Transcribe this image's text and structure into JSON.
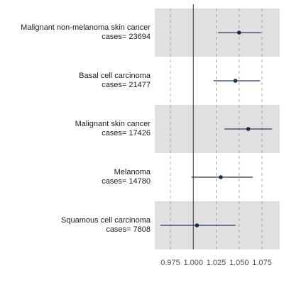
{
  "chart_data": {
    "type": "forest",
    "xlim": [
      0.96,
      1.09
    ],
    "xticks": [
      0.975,
      1.0,
      1.025,
      1.05,
      1.075
    ],
    "xtick_labels": [
      "0.975",
      "1.000",
      "1.025",
      "1.050",
      "1.075"
    ],
    "reference_line": 1.0,
    "grid": "vertical dashed",
    "rows": [
      {
        "label": "Malignant non-melanoma skin cancer",
        "cases": "cases= 23694",
        "estimate": 1.05,
        "lower": 1.027,
        "upper": 1.074
      },
      {
        "label": "Basal cell carcinoma",
        "cases": "cases= 21477",
        "estimate": 1.046,
        "lower": 1.022,
        "upper": 1.073
      },
      {
        "label": "Malignant skin cancer",
        "cases": "cases= 17426",
        "estimate": 1.06,
        "lower": 1.034,
        "upper": 1.086
      },
      {
        "label": "Melanoma",
        "cases": "cases= 14780",
        "estimate": 1.03,
        "lower": 0.998,
        "upper": 1.065
      },
      {
        "label": "Squamous cell carcinoma",
        "cases": "cases= 7808",
        "estimate": 1.004,
        "lower": 0.964,
        "upper": 1.046
      }
    ]
  }
}
